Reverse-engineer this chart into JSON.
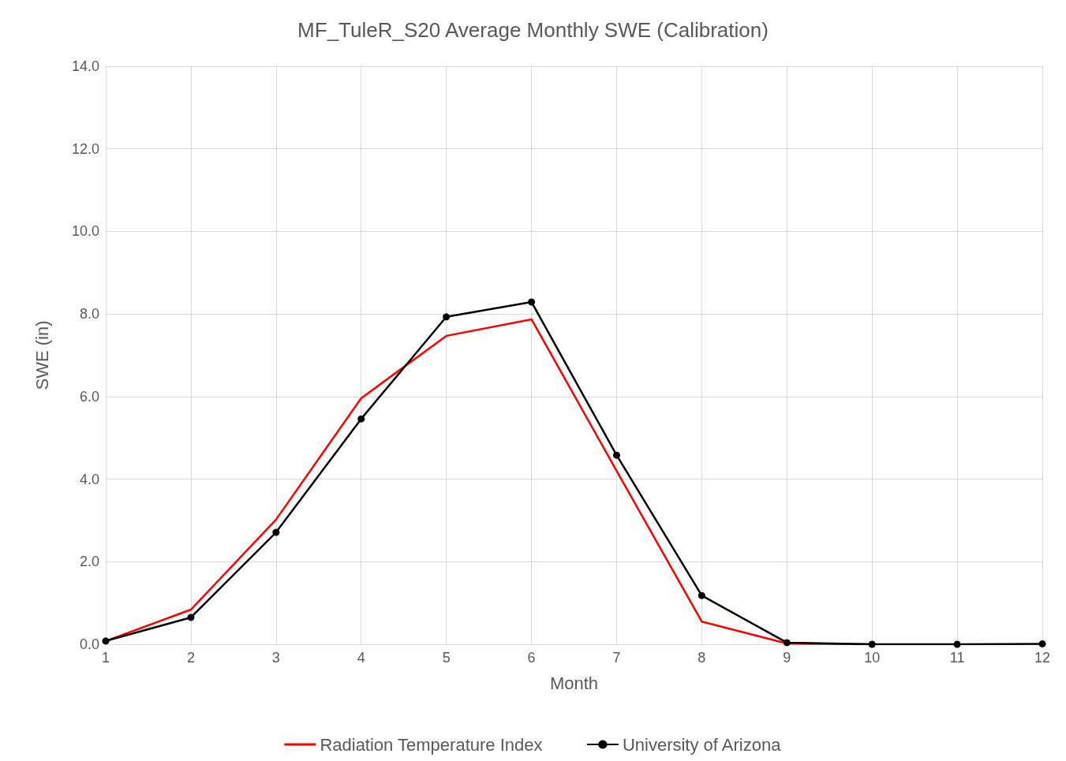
{
  "chart_data": {
    "type": "line",
    "title": "MF_TuleR_S20 Average Monthly SWE (Calibration)",
    "xlabel": "Month",
    "ylabel": "SWE (in)",
    "x": [
      1,
      2,
      3,
      4,
      5,
      6,
      7,
      8,
      9,
      10,
      11,
      12
    ],
    "series": [
      {
        "name": "Radiation Temperature Index",
        "color": "#ff0000",
        "marker": "none",
        "values": [
          0.08,
          0.84,
          3.02,
          5.96,
          7.47,
          7.87,
          4.2,
          0.55,
          0.02,
          0,
          null,
          null
        ]
      },
      {
        "name": "University of Arizona",
        "color": "#000000",
        "marker": "circle",
        "values": [
          0.08,
          0.65,
          2.71,
          5.46,
          7.93,
          8.29,
          4.58,
          1.18,
          0.04,
          0,
          0,
          0.01
        ]
      }
    ],
    "xlim": [
      1,
      12
    ],
    "xticks": [
      1,
      2,
      3,
      4,
      5,
      6,
      7,
      8,
      9,
      10,
      11,
      12
    ],
    "ylim": [
      0,
      14
    ],
    "yticks": [
      {
        "value": 0,
        "label": "0.0"
      },
      {
        "value": 2,
        "label": "2.0"
      },
      {
        "value": 4,
        "label": "4.0"
      },
      {
        "value": 6,
        "label": "6.0"
      },
      {
        "value": 8,
        "label": "8.0"
      },
      {
        "value": 10,
        "label": "10.0"
      },
      {
        "value": 12,
        "label": "12.0"
      },
      {
        "value": 14,
        "label": "14.0"
      }
    ],
    "grid": true,
    "legend": "bottom",
    "line_style": "solid"
  }
}
